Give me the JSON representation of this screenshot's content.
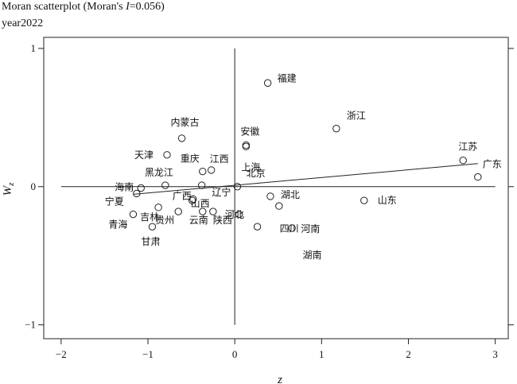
{
  "chart_data": {
    "type": "scatter",
    "title": "Moran scatterplot (Moran's I=0.056)",
    "title_parts": {
      "prefix": "Moran scatterplot (Moran's ",
      "stat": "I",
      "suffix": "=0.056)"
    },
    "subtitle": "year2022",
    "xlabel": "z",
    "ylabel": "Wz",
    "ylabel_parts": {
      "main": "W",
      "sub": "z"
    },
    "xlim": [
      -2.2,
      3.15
    ],
    "ylim": [
      -1.1,
      1.08
    ],
    "xticks": [
      -2,
      -1,
      0,
      1,
      2,
      3
    ],
    "xtick_labels": [
      "−2",
      "−1",
      "0",
      "1",
      "2",
      "3"
    ],
    "yticks": [
      -1,
      0,
      1
    ],
    "ytick_labels": [
      "−1",
      "0",
      "1"
    ],
    "regression": {
      "slope": 0.056,
      "intercept": 0.01
    },
    "points": [
      {
        "label": "福建",
        "x": 0.38,
        "y": 0.75
      },
      {
        "label": "浙江",
        "x": 1.17,
        "y": 0.42
      },
      {
        "label": "内蒙古",
        "x": -0.61,
        "y": 0.35
      },
      {
        "label": "安徽",
        "x": 0.13,
        "y": 0.3
      },
      {
        "label": "上海",
        "x": 0.13,
        "y": 0.29
      },
      {
        "label": "江苏",
        "x": 2.63,
        "y": 0.19
      },
      {
        "label": "广东",
        "x": 2.8,
        "y": 0.07
      },
      {
        "label": "天津",
        "x": -0.78,
        "y": 0.23
      },
      {
        "label": "重庆",
        "x": -0.37,
        "y": 0.11
      },
      {
        "label": "江西",
        "x": -0.27,
        "y": 0.12
      },
      {
        "label": "黑龙江",
        "x": -0.8,
        "y": 0.01
      },
      {
        "label": "北京",
        "x": -0.38,
        "y": 0.01
      },
      {
        "label": "辽宁",
        "x": 0.03,
        "y": 0.0
      },
      {
        "label": "海南",
        "x": -1.08,
        "y": -0.01
      },
      {
        "label": "宁夏",
        "x": -1.13,
        "y": -0.05
      },
      {
        "label": "广西",
        "x": -0.48,
        "y": -0.09
      },
      {
        "label": "山西",
        "x": -0.49,
        "y": -0.1
      },
      {
        "label": "湖北",
        "x": 0.41,
        "y": -0.07
      },
      {
        "label": "河北",
        "x": 0.51,
        "y": -0.14
      },
      {
        "label": "山东",
        "x": 1.49,
        "y": -0.1
      },
      {
        "label": "吉林",
        "x": -0.88,
        "y": -0.15
      },
      {
        "label": "青海",
        "x": -1.17,
        "y": -0.2
      },
      {
        "label": "贵州",
        "x": -0.65,
        "y": -0.18
      },
      {
        "label": "云南",
        "x": -0.37,
        "y": -0.18
      },
      {
        "label": "陕西",
        "x": -0.25,
        "y": -0.18
      },
      {
        "label": "四川",
        "x": 0.05,
        "y": -0.2
      },
      {
        "label": "甘肃",
        "x": -0.95,
        "y": -0.29
      },
      {
        "label": "湖南",
        "x": 0.26,
        "y": -0.29
      },
      {
        "label": "河南",
        "x": 0.66,
        "y": -0.3
      }
    ]
  }
}
